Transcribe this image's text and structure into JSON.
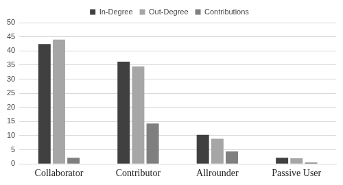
{
  "chart_data": {
    "type": "bar",
    "categories": [
      "Collaborator",
      "Contributor",
      "Allrounder",
      "Passive User"
    ],
    "series": [
      {
        "name": "In-Degree",
        "color": "#404040",
        "values": [
          42.4,
          36.2,
          10.3,
          2.2
        ]
      },
      {
        "name": "Out-Degree",
        "color": "#a6a6a6",
        "values": [
          44.0,
          34.5,
          8.9,
          2.0
        ]
      },
      {
        "name": "Contributions",
        "color": "#7f7f7f",
        "values": [
          2.2,
          14.3,
          4.4,
          0.5
        ]
      }
    ],
    "ylim": [
      0,
      50
    ],
    "yticks": [
      0,
      5,
      10,
      15,
      20,
      25,
      30,
      35,
      40,
      45,
      50
    ],
    "grid": true,
    "legend": "top"
  }
}
